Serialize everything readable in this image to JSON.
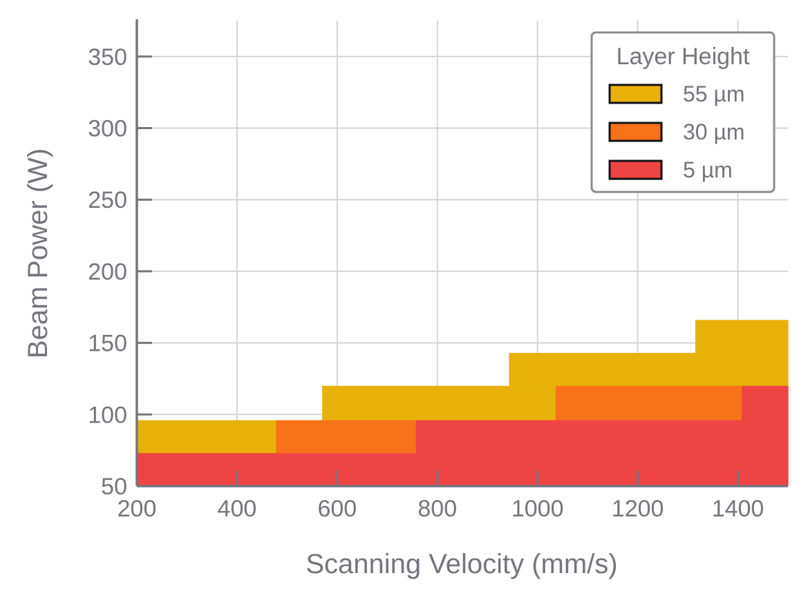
{
  "chart_data": {
    "type": "area",
    "xlabel": "Scanning Velocity (mm/s)",
    "ylabel": "Beam Power (W)",
    "xlim": [
      200,
      1500
    ],
    "ylim": [
      50,
      375
    ],
    "xticks": [
      200,
      400,
      600,
      800,
      1000,
      1200,
      1400
    ],
    "yticks": [
      50,
      100,
      150,
      200,
      250,
      300,
      350
    ],
    "grid": true,
    "legend": {
      "title": "Layer Height",
      "placement": "top-right",
      "entries": [
        "55 µm",
        "30 µm",
        "5 µm"
      ]
    },
    "series": [
      {
        "name": "55 µm",
        "color": "#e8b10a",
        "steps": [
          {
            "x0": 200,
            "x1": 570,
            "y": 96
          },
          {
            "x0": 570,
            "x1": 943,
            "y": 120
          },
          {
            "x0": 943,
            "x1": 1315,
            "y": 143
          },
          {
            "x0": 1315,
            "x1": 1500,
            "y": 166
          }
        ]
      },
      {
        "name": "30 µm",
        "color": "#f87219",
        "steps": [
          {
            "x0": 200,
            "x1": 478,
            "y": 73
          },
          {
            "x0": 478,
            "x1": 757,
            "y": 96
          },
          {
            "x0": 757,
            "x1": 1036,
            "y": 96
          },
          {
            "x0": 1036,
            "x1": 1408,
            "y": 120
          },
          {
            "x0": 1408,
            "x1": 1500,
            "y": 120
          }
        ]
      },
      {
        "name": "5 µm",
        "color": "#ef4444",
        "steps": [
          {
            "x0": 200,
            "x1": 757,
            "y": 73
          },
          {
            "x0": 757,
            "x1": 1408,
            "y": 96
          },
          {
            "x0": 1408,
            "x1": 1500,
            "y": 120
          }
        ]
      }
    ]
  }
}
